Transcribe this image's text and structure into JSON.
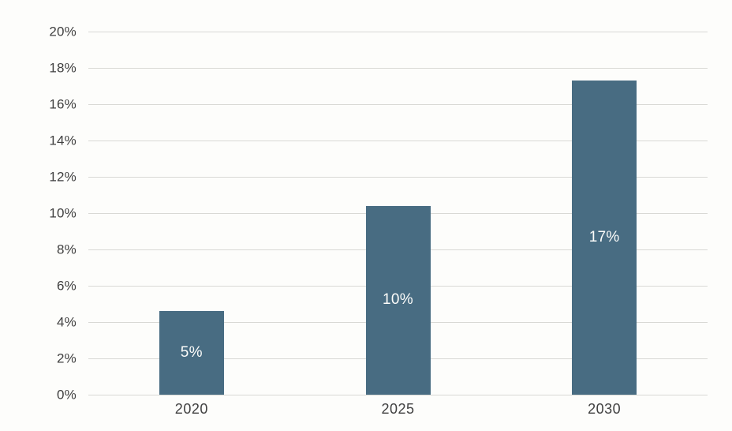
{
  "chart_data": {
    "type": "bar",
    "title": "",
    "xlabel": "",
    "ylabel": "",
    "categories": [
      "2020",
      "2025",
      "2030"
    ],
    "values": [
      4.6,
      10.4,
      17.3
    ],
    "bar_labels": [
      "5%",
      "10%",
      "17%"
    ],
    "ylim": [
      0,
      20
    ],
    "yticks": [
      0,
      2,
      4,
      6,
      8,
      10,
      12,
      14,
      16,
      18,
      20
    ],
    "ytick_labels": [
      "0%",
      "2%",
      "4%",
      "6%",
      "8%",
      "10%",
      "12%",
      "14%",
      "16%",
      "18%",
      "20%"
    ],
    "grid": true,
    "legend": "none",
    "bar_label_position": "inside-center",
    "colors": {
      "bar": "#486c82",
      "bar_label_text": "#fcfcfa",
      "gridline": "#d9d9d5",
      "tick_text": "#404040",
      "background": "#fdfdfb"
    }
  }
}
